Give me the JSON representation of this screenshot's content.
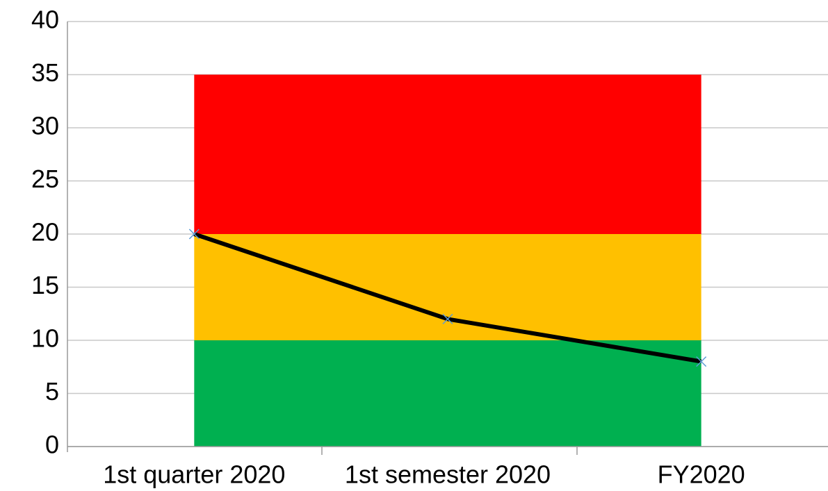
{
  "chart_data": {
    "type": "stacked_area_line",
    "categories": [
      "1st quarter 2020",
      "1st semester 2020",
      "FY2020"
    ],
    "areas": [
      {
        "color": "#00b050",
        "values": [
          10,
          10,
          10
        ]
      },
      {
        "color": "#ffc000",
        "values": [
          10,
          10,
          10
        ]
      },
      {
        "color": "#ff0000",
        "values": [
          15,
          15,
          15
        ]
      }
    ],
    "line": {
      "color": "#000000",
      "marker_color": "#5b9bd5",
      "values": [
        20,
        12,
        8
      ]
    },
    "ylim": [
      0,
      40
    ],
    "yticks": [
      0,
      5,
      10,
      15,
      20,
      25,
      30,
      35,
      40
    ],
    "grid": true
  }
}
